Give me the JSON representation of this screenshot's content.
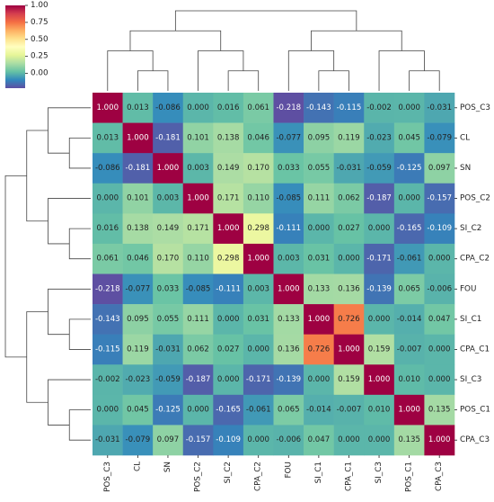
{
  "chart_data": {
    "type": "heatmap",
    "title": "",
    "labels": [
      "POS_C3",
      "CL",
      "SN",
      "POS_C2",
      "SI_C2",
      "CPA_C2",
      "FOU",
      "SI_C1",
      "CPA_C1",
      "SI_C3",
      "POS_C1",
      "CPA_C3"
    ],
    "values": [
      [
        1.0,
        0.013,
        -0.086,
        0.0,
        0.016,
        0.061,
        -0.218,
        -0.143,
        -0.115,
        -0.002,
        0.0,
        -0.031
      ],
      [
        0.013,
        1.0,
        -0.181,
        0.101,
        0.138,
        0.046,
        -0.077,
        0.095,
        0.119,
        -0.023,
        0.045,
        -0.079
      ],
      [
        -0.086,
        -0.181,
        1.0,
        0.003,
        0.149,
        0.17,
        0.033,
        0.055,
        -0.031,
        -0.059,
        -0.125,
        0.097
      ],
      [
        0.0,
        0.101,
        0.003,
        1.0,
        0.171,
        0.11,
        -0.085,
        0.111,
        0.062,
        -0.187,
        -0.0,
        -0.157
      ],
      [
        0.016,
        0.138,
        0.149,
        0.171,
        1.0,
        0.298,
        -0.111,
        0.0,
        0.027,
        0.0,
        -0.165,
        -0.109
      ],
      [
        0.061,
        0.046,
        0.17,
        0.11,
        0.298,
        1.0,
        0.003,
        0.031,
        -0.0,
        -0.171,
        -0.061,
        -0.0
      ],
      [
        -0.218,
        -0.077,
        0.033,
        -0.085,
        -0.111,
        0.003,
        1.0,
        0.133,
        0.136,
        -0.139,
        0.065,
        -0.006
      ],
      [
        -0.143,
        0.095,
        0.055,
        0.111,
        0.0,
        0.031,
        0.133,
        1.0,
        0.726,
        -0.0,
        -0.014,
        0.047
      ],
      [
        -0.115,
        0.119,
        -0.031,
        0.062,
        0.027,
        -0.0,
        0.136,
        0.726,
        1.0,
        0.159,
        -0.007,
        0.0
      ],
      [
        -0.002,
        -0.023,
        -0.059,
        -0.187,
        0.0,
        -0.171,
        -0.139,
        -0.0,
        0.159,
        1.0,
        0.01,
        -0.0
      ],
      [
        0.0,
        0.045,
        -0.125,
        -0.0,
        -0.165,
        -0.061,
        0.065,
        -0.014,
        -0.007,
        0.01,
        1.0,
        0.135
      ],
      [
        -0.031,
        -0.079,
        0.097,
        -0.157,
        -0.109,
        -0.0,
        -0.006,
        0.047,
        0.0,
        -0.0,
        0.135,
        1.0
      ]
    ],
    "value_format": "3 decimals",
    "colormap": "Spectral_r",
    "colorbar": {
      "range": [
        -0.218,
        1.0
      ],
      "ticks": [
        "1.00",
        "0.75",
        "0.50",
        "0.25",
        "0.00"
      ],
      "placement": "top-left"
    },
    "dendrograms": [
      "top",
      "left"
    ],
    "row_label_side": "right",
    "column_label_rotation": "vertical"
  }
}
